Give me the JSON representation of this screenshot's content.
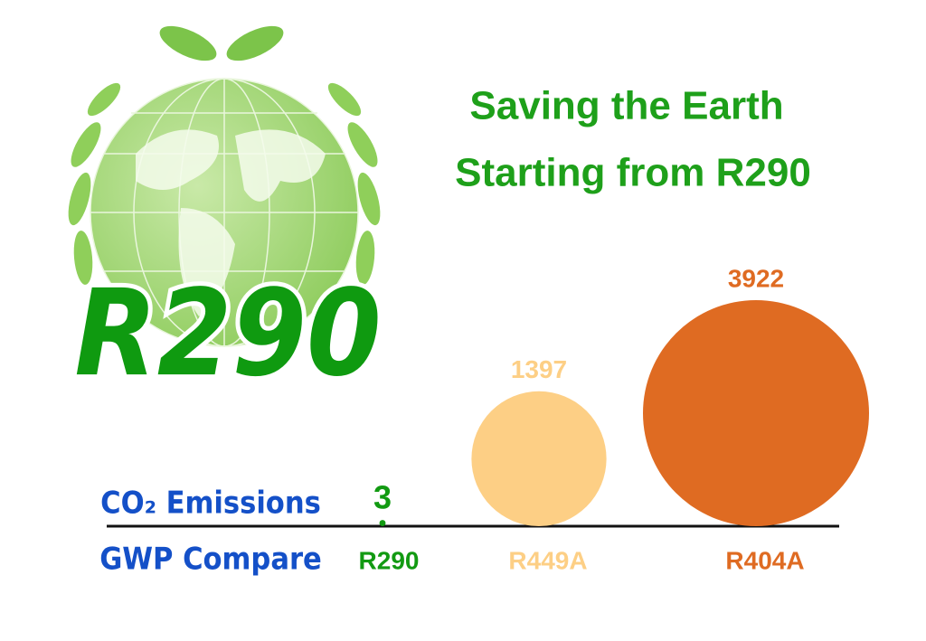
{
  "chart_data": {
    "type": "bubble",
    "title": [
      "Saving the Earth",
      "Starting from R290"
    ],
    "logo_text": "R290",
    "y_label": "CO₂ Emissions",
    "x_label": "GWP Compare",
    "categories": [
      "R290",
      "R449A",
      "R404A"
    ],
    "values": [
      3,
      1397,
      3922
    ],
    "colors": [
      "#129a12",
      "#fdcf85",
      "#df6b22"
    ],
    "title_color": "#1ea01a",
    "label_color": "#1450c8"
  }
}
